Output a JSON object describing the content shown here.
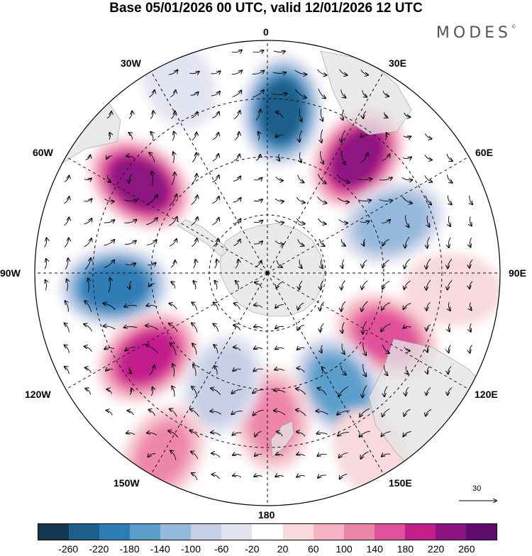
{
  "title": "Base 05/01/2026 00 UTC, valid 12/01/2026 12 UTC",
  "brand": {
    "name": "MODES",
    "mark": "©"
  },
  "longitude_labels": {
    "n0": "0",
    "n30e": "30E",
    "n60e": "60E",
    "n90e": "90E",
    "n120e": "120E",
    "n150e": "150E",
    "n180": "180",
    "n150w": "150W",
    "n120w": "120W",
    "n90w": "90W",
    "n60w": "60W",
    "n30w": "30W"
  },
  "reference_vector": {
    "label": "30",
    "value": 30
  },
  "colorbar": {
    "colors": [
      "#14374f",
      "#1c5f8a",
      "#2d7db5",
      "#5b9fcc",
      "#94b9dc",
      "#c6cfe6",
      "#e3e4f2",
      "#ffffff",
      "#f8d9dd",
      "#f4b3c4",
      "#ee85ab",
      "#e0519b",
      "#c31f8c",
      "#8e1281",
      "#5e0a6e"
    ],
    "ticks": [
      "-260",
      "-220",
      "-180",
      "-140",
      "-100",
      "-60",
      "-20",
      "20",
      "60",
      "100",
      "140",
      "180",
      "220",
      "260"
    ]
  },
  "anomalies": [
    {
      "lon": 5,
      "r": 0.7,
      "value": -240
    },
    {
      "lon": 38,
      "r": 0.63,
      "value": 240
    },
    {
      "lon": 68,
      "r": 0.58,
      "value": -140
    },
    {
      "lon": -55,
      "r": 0.67,
      "value": 250
    },
    {
      "lon": -95,
      "r": 0.66,
      "value": -220
    },
    {
      "lon": -125,
      "r": 0.63,
      "value": 200
    },
    {
      "lon": 118,
      "r": 0.58,
      "value": 160
    },
    {
      "lon": 148,
      "r": 0.58,
      "value": -180
    },
    {
      "lon": 178,
      "r": 0.63,
      "value": 110
    },
    {
      "lon": -158,
      "r": 0.52,
      "value": -90
    },
    {
      "lon": -150,
      "r": 0.9,
      "value": 110
    },
    {
      "lon": 95,
      "r": 0.8,
      "value": 60
    },
    {
      "lon": -25,
      "r": 0.9,
      "value": -40
    },
    {
      "lon": 150,
      "r": 0.9,
      "value": 50
    }
  ]
}
